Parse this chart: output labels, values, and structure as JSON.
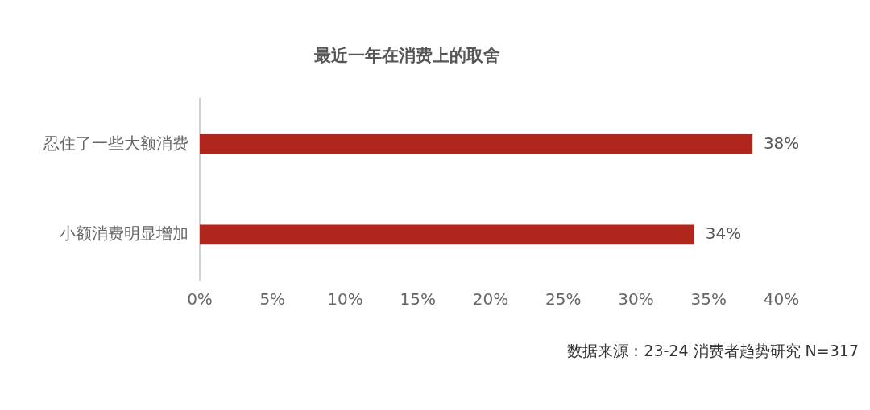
{
  "chart_data": {
    "type": "bar",
    "orientation": "horizontal",
    "title": "最近一年在消费上的取舍",
    "categories": [
      "忍住了一些大额消费",
      "小额消费明显增加"
    ],
    "values": [
      38,
      34
    ],
    "color": "#b0251c",
    "value_labels": [
      "38%",
      "34%"
    ],
    "xlim": [
      0,
      40
    ],
    "xticks": [
      {
        "value": 0,
        "label": "0%"
      },
      {
        "value": 5,
        "label": "5%"
      },
      {
        "value": 10,
        "label": "10%"
      },
      {
        "value": 15,
        "label": "15%"
      },
      {
        "value": 20,
        "label": "20%"
      },
      {
        "value": 25,
        "label": "25%"
      },
      {
        "value": 30,
        "label": "30%"
      },
      {
        "value": 35,
        "label": "35%"
      },
      {
        "value": 40,
        "label": "40%"
      }
    ],
    "grid": false,
    "legend": false,
    "annotations": [
      "数据来源：23-24 消费者趋势研究 N=317"
    ]
  }
}
